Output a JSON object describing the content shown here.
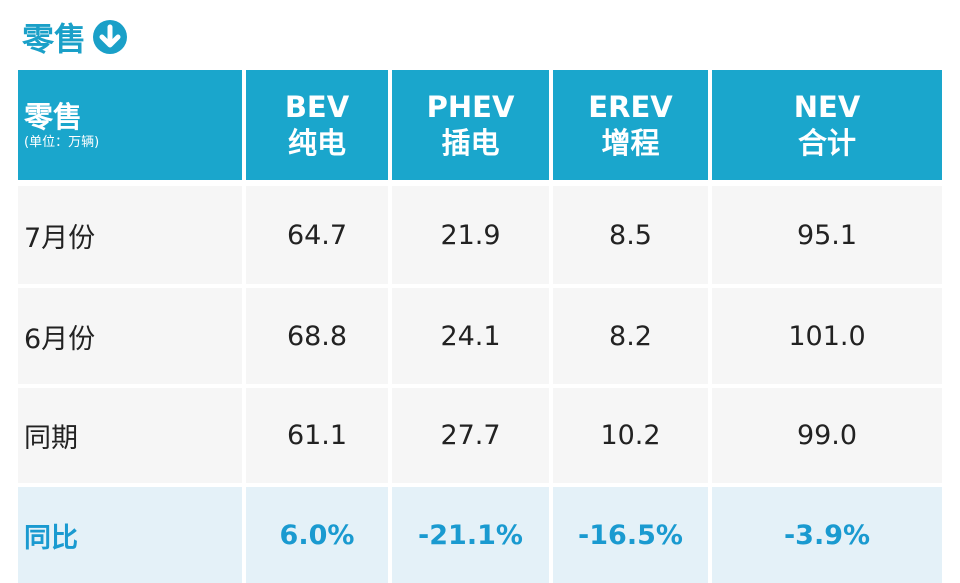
{
  "header": {
    "title": "零售"
  },
  "table": {
    "columns": [
      {
        "label": "零售",
        "sub": "(单位：万辆)"
      },
      {
        "label": "BEV",
        "sub": "纯电"
      },
      {
        "label": "PHEV",
        "sub": "插电"
      },
      {
        "label": "EREV",
        "sub": "增程"
      },
      {
        "label": "NEV",
        "sub": "合计"
      }
    ],
    "rows": [
      [
        "7月份",
        "64.7",
        "21.9",
        "8.5",
        "95.1"
      ],
      [
        "6月份",
        "68.8",
        "24.1",
        "8.2",
        "101.0"
      ],
      [
        "同期",
        "61.1",
        "27.7",
        "10.2",
        "99.0"
      ],
      [
        "同比",
        "6.0%",
        "-21.1%",
        "-16.5%",
        "-3.9%"
      ]
    ]
  }
}
